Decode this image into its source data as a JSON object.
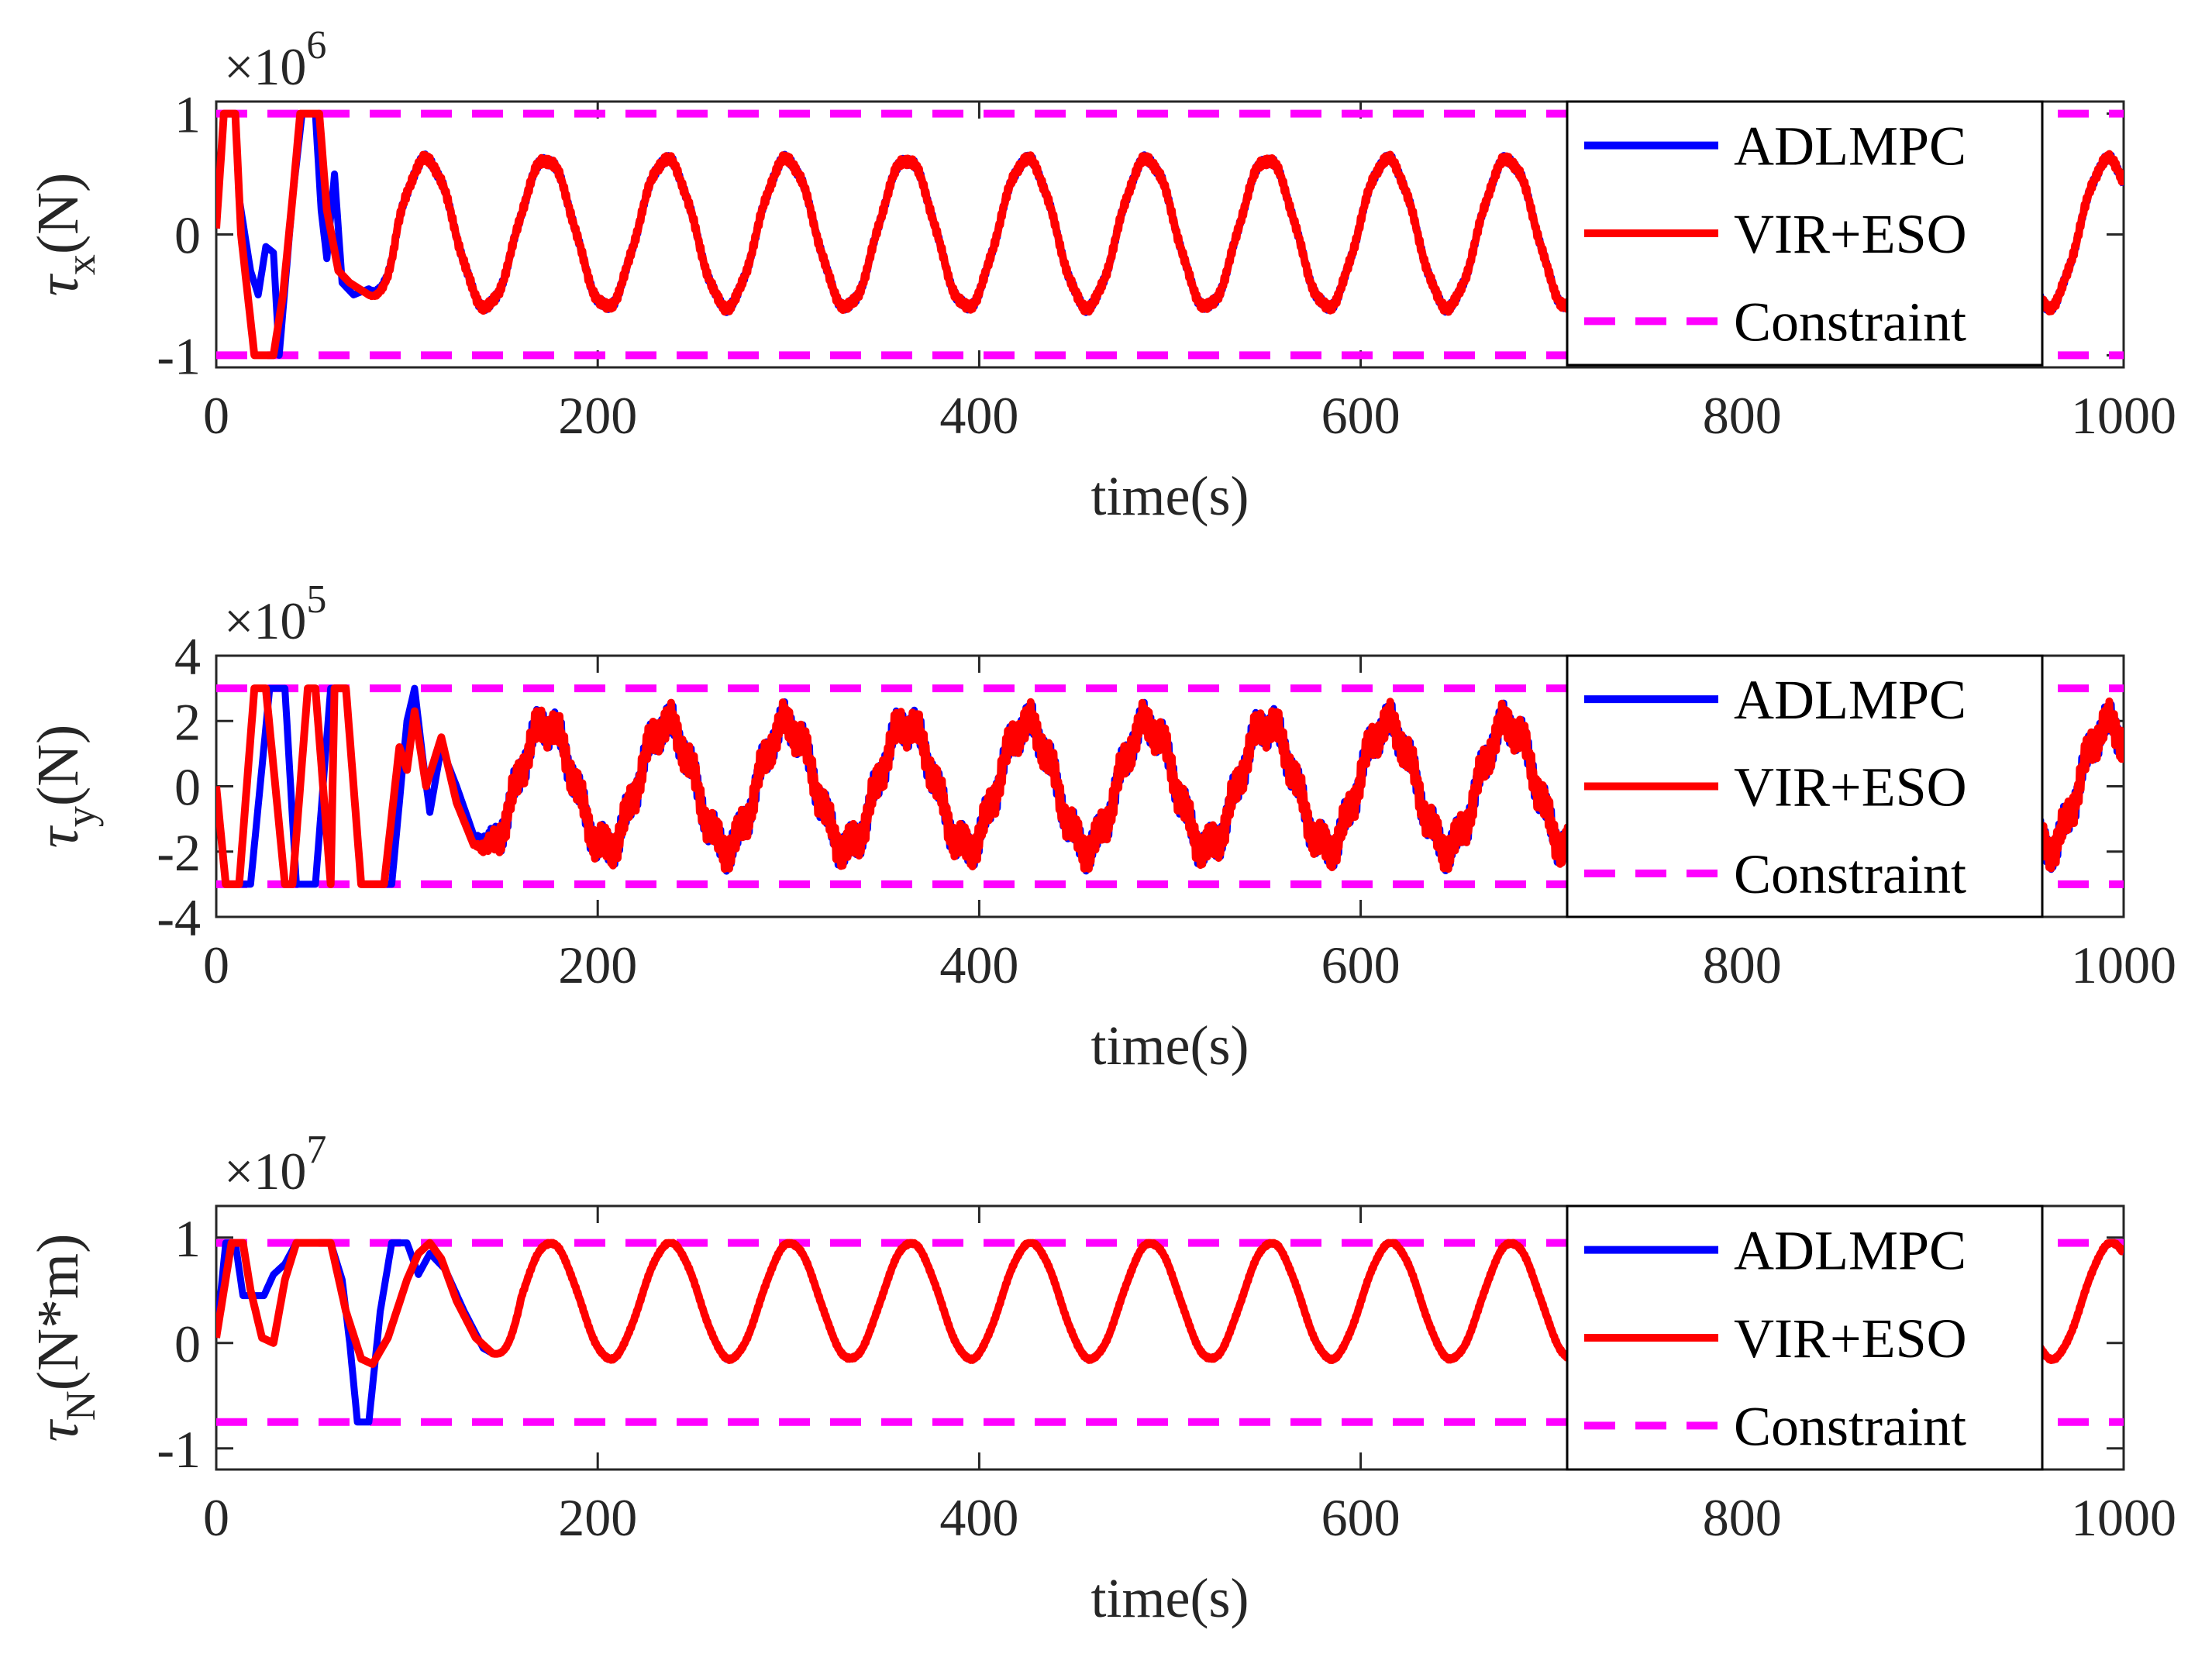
{
  "colors": {
    "adlmpc": "#0000FF",
    "vir_eso": "#FF0000",
    "constraint": "#FF00FF"
  },
  "chart_data": [
    {
      "type": "line",
      "id": "tau-x",
      "ylabel_main": "τ",
      "ylabel_sub": "x",
      "ylabel_unit": "(N)",
      "xlabel": "time(s)",
      "exponent_prefix": "×10",
      "exponent": "6",
      "xlim": [
        0,
        1000
      ],
      "ylim": [
        -1.1,
        1.1
      ],
      "xticks": [
        0,
        200,
        400,
        600,
        800,
        1000
      ],
      "xtick_labels": [
        "0",
        "200",
        "400",
        "600",
        "800",
        "1000"
      ],
      "yticks": [
        -1,
        0,
        1
      ],
      "ytick_labels": [
        "-1",
        "0",
        "1"
      ],
      "legend": [
        "ADLMPC",
        "VIR+ESO",
        "Constraint"
      ],
      "legend_position": "right",
      "constraint": [
        -1,
        1
      ],
      "oscillation": {
        "amplitude": 0.61,
        "offset": 0.11,
        "period": 63,
        "phase_time": 110,
        "noise": 0.03
      },
      "series": [
        {
          "name": "ADLMPC",
          "transient": [
            [
              0,
              0.05
            ],
            [
              4,
              1
            ],
            [
              10,
              1
            ],
            [
              12,
              0.3
            ],
            [
              18,
              -0.3
            ],
            [
              22,
              -0.5
            ],
            [
              26,
              -0.1
            ],
            [
              30,
              -0.15
            ],
            [
              33,
              -1
            ],
            [
              40,
              0.3
            ],
            [
              45,
              1
            ],
            [
              52,
              1
            ],
            [
              55,
              0.2
            ],
            [
              58,
              -0.2
            ],
            [
              62,
              0.5
            ],
            [
              66,
              -0.4
            ],
            [
              72,
              -0.5
            ],
            [
              80,
              -0.45
            ]
          ]
        },
        {
          "name": "VIR+ESO",
          "transient": [
            [
              0,
              0.05
            ],
            [
              4,
              1
            ],
            [
              10,
              1
            ],
            [
              13,
              0
            ],
            [
              20,
              -1
            ],
            [
              30,
              -1
            ],
            [
              35,
              -0.5
            ],
            [
              40,
              0.3
            ],
            [
              44,
              1
            ],
            [
              54,
              1
            ],
            [
              58,
              0.2
            ],
            [
              64,
              -0.3
            ],
            [
              70,
              -0.4
            ],
            [
              80,
              -0.5
            ]
          ]
        }
      ]
    },
    {
      "type": "line",
      "id": "tau-y",
      "ylabel_main": "τ",
      "ylabel_sub": "y",
      "ylabel_unit": "(N)",
      "xlabel": "time(s)",
      "exponent_prefix": "×10",
      "exponent": "5",
      "xlim": [
        0,
        1000
      ],
      "ylim": [
        -4,
        4
      ],
      "xticks": [
        0,
        200,
        400,
        600,
        800,
        1000
      ],
      "xtick_labels": [
        "0",
        "200",
        "400",
        "600",
        "800",
        "1000"
      ],
      "yticks": [
        -4,
        -2,
        0,
        2,
        4
      ],
      "ytick_labels": [
        "-4",
        "-2",
        "0",
        "2",
        "4"
      ],
      "legend": [
        "ADLMPC",
        "VIR+ESO",
        "Constraint"
      ],
      "legend_position": "right",
      "constraint": [
        -3,
        3
      ],
      "oscillation": {
        "amplitude": 1.9,
        "offset": 0,
        "period": 63,
        "phase_time": 110,
        "noise": 0.45
      },
      "series": [
        {
          "name": "ADLMPC",
          "transient": [
            [
              0,
              0
            ],
            [
              5,
              -3
            ],
            [
              18,
              -3
            ],
            [
              28,
              3
            ],
            [
              36,
              3
            ],
            [
              42,
              -3
            ],
            [
              52,
              -3
            ],
            [
              60,
              3
            ],
            [
              68,
              3
            ],
            [
              76,
              -3
            ],
            [
              92,
              -3
            ],
            [
              100,
              2
            ],
            [
              104,
              3
            ],
            [
              108,
              1
            ],
            [
              112,
              -0.8
            ],
            [
              118,
              1.2
            ],
            [
              126,
              0
            ],
            [
              135,
              -1.5
            ]
          ]
        },
        {
          "name": "VIR+ESO",
          "transient": [
            [
              0,
              0
            ],
            [
              5,
              -3
            ],
            [
              12,
              -3
            ],
            [
              20,
              3
            ],
            [
              26,
              3
            ],
            [
              36,
              -3
            ],
            [
              40,
              -3
            ],
            [
              48,
              3
            ],
            [
              52,
              3
            ],
            [
              60,
              -3
            ],
            [
              62,
              3
            ],
            [
              68,
              3
            ],
            [
              76,
              -3
            ],
            [
              88,
              -3
            ],
            [
              96,
              1.2
            ],
            [
              100,
              0.5
            ],
            [
              104,
              2.3
            ],
            [
              110,
              0
            ],
            [
              118,
              1.5
            ],
            [
              126,
              -0.5
            ],
            [
              135,
              -1.8
            ]
          ]
        }
      ]
    },
    {
      "type": "line",
      "id": "tau-n",
      "ylabel_main": "τ",
      "ylabel_sub": "N",
      "ylabel_unit": "(N*m)",
      "xlabel": "time(s)",
      "exponent_prefix": "×10",
      "exponent": "7",
      "xlim": [
        0,
        1000
      ],
      "ylim": [
        -1.2,
        1.3
      ],
      "xticks": [
        0,
        200,
        400,
        600,
        800,
        1000
      ],
      "xtick_labels": [
        "0",
        "200",
        "400",
        "600",
        "800",
        "1000"
      ],
      "yticks": [
        -1,
        0,
        1
      ],
      "ytick_labels": [
        "-1",
        "0",
        "1"
      ],
      "legend": [
        "ADLMPC",
        "VIR+ESO",
        "Constraint"
      ],
      "legend_position": "right",
      "constraint": [
        -0.75,
        0.95
      ],
      "oscillation": {
        "amplitude": 0.55,
        "offset": 0.4,
        "period": 63,
        "phase_time": 175,
        "noise": 0.01
      },
      "series": [
        {
          "name": "ADLMPC",
          "transient": [
            [
              0,
              0.05
            ],
            [
              5,
              0.95
            ],
            [
              10,
              0.95
            ],
            [
              14,
              0.45
            ],
            [
              20,
              0.45
            ],
            [
              25,
              0.45
            ],
            [
              30,
              0.65
            ],
            [
              36,
              0.75
            ],
            [
              42,
              0.95
            ],
            [
              60,
              0.95
            ],
            [
              66,
              0.6
            ],
            [
              70,
              0
            ],
            [
              74,
              -0.75
            ],
            [
              80,
              -0.75
            ],
            [
              86,
              0.3
            ],
            [
              92,
              0.95
            ],
            [
              100,
              0.95
            ],
            [
              106,
              0.65
            ],
            [
              112,
              0.85
            ],
            [
              120,
              0.7
            ],
            [
              130,
              0.3
            ],
            [
              140,
              -0.05
            ],
            [
              145,
              -0.1
            ]
          ]
        },
        {
          "name": "VIR+ESO",
          "transient": [
            [
              0,
              0.05
            ],
            [
              8,
              0.95
            ],
            [
              14,
              0.95
            ],
            [
              18,
              0.5
            ],
            [
              24,
              0.05
            ],
            [
              30,
              0
            ],
            [
              36,
              0.6
            ],
            [
              42,
              0.95
            ],
            [
              60,
              0.95
            ],
            [
              68,
              0.3
            ],
            [
              76,
              -0.15
            ],
            [
              82,
              -0.2
            ],
            [
              90,
              0.05
            ],
            [
              100,
              0.6
            ],
            [
              106,
              0.85
            ],
            [
              112,
              0.95
            ],
            [
              118,
              0.8
            ],
            [
              126,
              0.4
            ],
            [
              136,
              0.05
            ],
            [
              145,
              -0.1
            ]
          ]
        }
      ]
    }
  ]
}
